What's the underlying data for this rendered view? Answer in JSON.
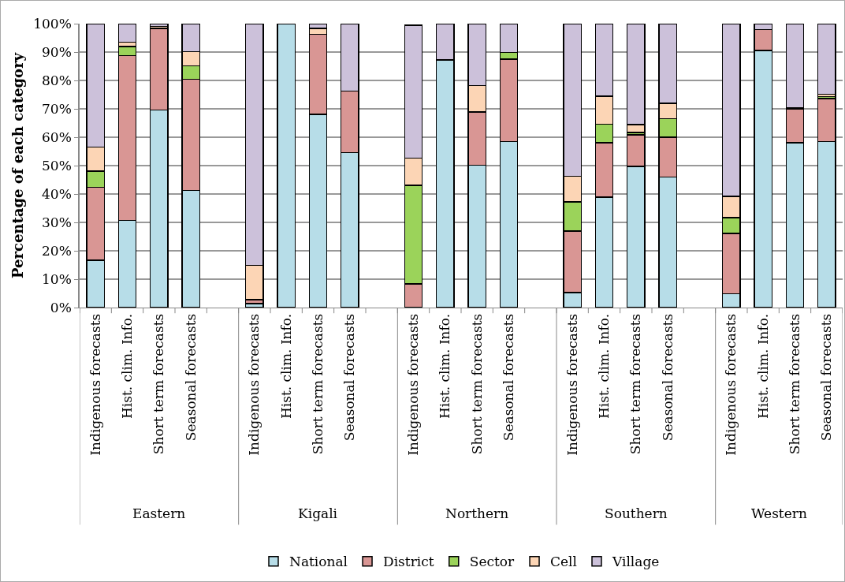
{
  "chart_data": {
    "type": "bar",
    "stacked": true,
    "ylabel": "Percentage of each category",
    "categories": [
      "Indigenous forecasts",
      "Hist. clim. Info.",
      "Short term forecasts",
      "Seasonal forecasts",
      null,
      "Indigenous forecasts",
      "Hist. clim. Info.",
      "Short term forecasts",
      "Seasonal forecasts",
      null,
      "Indigenous forecasts",
      "Hist. clim. Info.",
      "Short term forecasts",
      "Seasonal forecasts",
      null,
      "Indigenous forecasts",
      "Hist. clim. Info.",
      "Short term forecasts",
      "Seasonal forecasts",
      null,
      "Indigenous forecasts",
      "Hist. clim. Info.",
      "Short term forecasts",
      "Seasonal forecasts"
    ],
    "annotations": [
      "Eastern",
      "Kigali",
      "Northern",
      "Southern",
      "Western"
    ],
    "series": [
      {
        "name": "National",
        "color": "#b7dde8",
        "values": [
          16.7,
          30.7,
          69.6,
          41.3,
          null,
          1.4,
          100,
          68,
          54.6,
          null,
          null,
          87.2,
          50.2,
          58.5,
          null,
          5.3,
          38.9,
          49.7,
          46,
          null,
          4.8,
          90.6,
          58.1,
          58.5
        ]
      },
      {
        "name": "District",
        "color": "#d99694",
        "values": [
          25.7,
          58,
          28.7,
          39.1,
          null,
          1.4,
          0,
          28.3,
          21.6,
          null,
          8.3,
          0,
          18.7,
          29,
          null,
          21.7,
          19.2,
          11.1,
          14,
          null,
          21.3,
          7.3,
          11.8,
          15.1
        ]
      },
      {
        "name": "Sector",
        "color": "#9bd35a",
        "values": [
          5.6,
          3.2,
          0,
          4.8,
          null,
          0,
          0,
          0,
          0,
          null,
          34.7,
          0,
          0,
          2.3,
          null,
          10.2,
          6.5,
          0.8,
          6.5,
          null,
          5.6,
          0,
          0.3,
          0.7
        ]
      },
      {
        "name": "Cell",
        "color": "#fcd5b5",
        "values": [
          8.5,
          1.6,
          0.7,
          4.9,
          null,
          12,
          0,
          2,
          0,
          null,
          9.7,
          0,
          9.3,
          0,
          null,
          9.1,
          9.8,
          2.8,
          5.4,
          null,
          7.4,
          0,
          0.2,
          0.9
        ]
      },
      {
        "name": "Village",
        "color": "#ccc1da",
        "values": [
          43.5,
          6.5,
          1.0,
          9.9,
          null,
          85.2,
          0,
          1.7,
          23.8,
          null,
          46.8,
          12.8,
          21.8,
          10.2,
          null,
          53.7,
          25.6,
          35.6,
          28.1,
          null,
          60.9,
          2.1,
          29.6,
          24.8
        ]
      }
    ],
    "ylim": [
      0,
      100
    ],
    "yticks": [
      {
        "value": 0,
        "label": "0%"
      },
      {
        "value": 10,
        "label": "10%"
      },
      {
        "value": 20,
        "label": "20%"
      },
      {
        "value": 30,
        "label": "30%"
      },
      {
        "value": 40,
        "label": "40%"
      },
      {
        "value": 50,
        "label": "50%"
      },
      {
        "value": 60,
        "label": "60%"
      },
      {
        "value": 70,
        "label": "70%"
      },
      {
        "value": 80,
        "label": "80%"
      },
      {
        "value": 90,
        "label": "90%"
      },
      {
        "value": 100,
        "label": "100%"
      }
    ],
    "grid": "y",
    "legend": "bottom"
  }
}
